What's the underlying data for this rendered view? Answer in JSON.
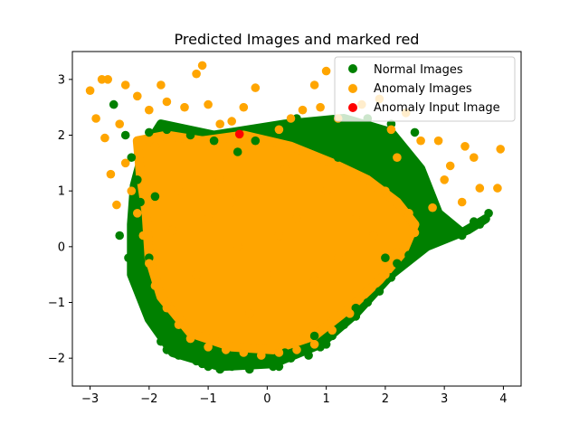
{
  "chart_data": {
    "type": "scatter",
    "title": "Predicted Images and marked red",
    "xlabel": "",
    "ylabel": "",
    "xlim": [
      -3.3,
      4.3
    ],
    "ylim": [
      -2.5,
      3.5
    ],
    "xticks": [
      -3,
      -2,
      -1,
      0,
      1,
      2,
      3,
      4
    ],
    "yticks": [
      -2,
      -1,
      0,
      1,
      2,
      3
    ],
    "grid": false,
    "legend_position": "top-right",
    "series": [
      {
        "name": "Normal Images",
        "color": "#008000",
        "points": [
          [
            -2.6,
            2.55
          ],
          [
            -2.4,
            2.0
          ],
          [
            -2.3,
            1.6
          ],
          [
            -2.2,
            1.2
          ],
          [
            -2.15,
            0.8
          ],
          [
            -2.3,
            0.3
          ],
          [
            -2.35,
            -0.2
          ],
          [
            -2.3,
            -0.4
          ],
          [
            -2.2,
            -0.6
          ],
          [
            -2.1,
            -0.8
          ],
          [
            -1.95,
            -1.1
          ],
          [
            -1.9,
            -1.45
          ],
          [
            -1.8,
            -1.7
          ],
          [
            -1.7,
            -1.85
          ],
          [
            -1.5,
            -1.95
          ],
          [
            -1.2,
            -2.05
          ],
          [
            -1.0,
            -2.15
          ],
          [
            -0.8,
            -2.2
          ],
          [
            -0.6,
            -2.15
          ],
          [
            -0.4,
            -2.1
          ],
          [
            -0.2,
            -2.05
          ],
          [
            0.0,
            -2.1
          ],
          [
            0.2,
            -2.15
          ],
          [
            0.4,
            -2.0
          ],
          [
            0.7,
            -1.95
          ],
          [
            0.9,
            -1.8
          ],
          [
            1.1,
            -1.6
          ],
          [
            1.3,
            -1.4
          ],
          [
            1.5,
            -1.25
          ],
          [
            1.7,
            -1.0
          ],
          [
            1.9,
            -0.8
          ],
          [
            2.1,
            -0.55
          ],
          [
            2.2,
            -0.3
          ],
          [
            2.4,
            -0.15
          ],
          [
            2.6,
            0.0
          ],
          [
            2.8,
            0.2
          ],
          [
            3.0,
            0.3
          ],
          [
            3.2,
            0.25
          ],
          [
            3.4,
            0.3
          ],
          [
            3.6,
            0.4
          ],
          [
            3.75,
            0.6
          ],
          [
            3.5,
            0.45
          ],
          [
            2.9,
            0.5
          ],
          [
            2.6,
            0.6
          ],
          [
            2.4,
            1.0
          ],
          [
            2.3,
            1.5
          ],
          [
            2.5,
            2.05
          ],
          [
            2.1,
            2.2
          ],
          [
            1.7,
            2.3
          ],
          [
            1.3,
            2.2
          ],
          [
            0.9,
            2.0
          ],
          [
            0.5,
            2.3
          ],
          [
            0.1,
            2.1
          ],
          [
            -0.2,
            1.9
          ],
          [
            -0.5,
            1.7
          ],
          [
            -0.9,
            1.9
          ],
          [
            -1.3,
            2.0
          ],
          [
            -1.7,
            2.1
          ],
          [
            -2.0,
            2.05
          ],
          [
            -1.6,
            -1.6
          ],
          [
            -1.3,
            -1.8
          ],
          [
            -0.7,
            -1.9
          ],
          [
            0.3,
            -1.9
          ],
          [
            0.8,
            -1.6
          ],
          [
            1.5,
            -1.1
          ],
          [
            2.0,
            -0.2
          ],
          [
            -2.0,
            -0.2
          ],
          [
            -1.9,
            0.9
          ],
          [
            1.8,
            1.9
          ],
          [
            1.2,
            1.6
          ],
          [
            -0.3,
            -2.2
          ],
          [
            0.1,
            -2.15
          ],
          [
            -1.1,
            -2.1
          ],
          [
            -2.5,
            0.2
          ],
          [
            3.3,
            0.2
          ],
          [
            2.7,
            0.1
          ],
          [
            1.0,
            -1.75
          ],
          [
            -1.8,
            -1.3
          ]
        ]
      },
      {
        "name": "Anomaly Images",
        "color": "#ffa500",
        "points": [
          [
            -3.0,
            2.8
          ],
          [
            -2.8,
            3.0
          ],
          [
            -2.7,
            3.0
          ],
          [
            -2.9,
            2.3
          ],
          [
            -2.75,
            1.95
          ],
          [
            -2.65,
            1.3
          ],
          [
            -2.55,
            0.75
          ],
          [
            -2.4,
            2.9
          ],
          [
            -2.2,
            2.7
          ],
          [
            -2.0,
            2.45
          ],
          [
            -1.8,
            2.9
          ],
          [
            -1.7,
            2.6
          ],
          [
            -1.4,
            2.5
          ],
          [
            -1.2,
            3.1
          ],
          [
            -1.1,
            3.25
          ],
          [
            -1.0,
            2.55
          ],
          [
            -0.8,
            2.2
          ],
          [
            -0.6,
            2.25
          ],
          [
            -0.4,
            2.5
          ],
          [
            -0.2,
            2.85
          ],
          [
            0.2,
            2.1
          ],
          [
            0.4,
            2.3
          ],
          [
            0.6,
            2.45
          ],
          [
            0.8,
            2.9
          ],
          [
            1.0,
            3.15
          ],
          [
            1.2,
            2.3
          ],
          [
            1.45,
            2.85
          ],
          [
            1.6,
            2.55
          ],
          [
            1.9,
            2.65
          ],
          [
            2.1,
            2.1
          ],
          [
            2.35,
            2.4
          ],
          [
            2.6,
            1.9
          ],
          [
            2.9,
            1.9
          ],
          [
            3.1,
            1.45
          ],
          [
            3.35,
            1.8
          ],
          [
            3.5,
            1.6
          ],
          [
            3.6,
            1.05
          ],
          [
            3.9,
            1.05
          ],
          [
            3.95,
            1.75
          ],
          [
            3.3,
            0.8
          ],
          [
            3.0,
            1.2
          ],
          [
            2.8,
            0.7
          ],
          [
            2.5,
            0.25
          ],
          [
            2.2,
            -0.1
          ],
          [
            2.0,
            -0.5
          ],
          [
            1.7,
            -0.8
          ],
          [
            1.4,
            -1.2
          ],
          [
            1.1,
            -1.5
          ],
          [
            0.8,
            -1.75
          ],
          [
            0.5,
            -1.85
          ],
          [
            0.2,
            -1.9
          ],
          [
            -0.1,
            -1.95
          ],
          [
            -0.4,
            -1.9
          ],
          [
            -0.7,
            -1.85
          ],
          [
            -1.0,
            -1.8
          ],
          [
            -1.3,
            -1.65
          ],
          [
            -1.5,
            -1.4
          ],
          [
            -1.7,
            -1.1
          ],
          [
            -1.9,
            -0.7
          ],
          [
            -2.0,
            -0.3
          ],
          [
            -2.1,
            0.2
          ],
          [
            -2.2,
            0.6
          ],
          [
            -2.3,
            1.0
          ],
          [
            -2.4,
            1.5
          ],
          [
            -1.5,
            1.0
          ],
          [
            -1.0,
            0.5
          ],
          [
            -0.5,
            0.0
          ],
          [
            0.0,
            -0.5
          ],
          [
            0.5,
            0.5
          ],
          [
            1.0,
            1.0
          ],
          [
            1.5,
            0.5
          ],
          [
            2.0,
            1.0
          ],
          [
            -1.2,
            -0.5
          ],
          [
            -0.8,
            1.2
          ],
          [
            0.3,
            1.4
          ],
          [
            0.8,
            -0.6
          ],
          [
            -0.3,
            -1.2
          ],
          [
            1.2,
            -0.2
          ],
          [
            1.8,
            0.2
          ],
          [
            -1.6,
            0.3
          ],
          [
            -0.6,
            0.8
          ],
          [
            0.2,
            0.2
          ],
          [
            2.4,
            0.6
          ],
          [
            -2.5,
            2.2
          ],
          [
            -1.9,
            1.8
          ],
          [
            0.9,
            2.5
          ],
          [
            2.2,
            1.6
          ]
        ]
      },
      {
        "name": "Anomaly Input Image",
        "color": "#ff0000",
        "points": [
          [
            -0.47,
            2.02
          ]
        ]
      }
    ]
  }
}
